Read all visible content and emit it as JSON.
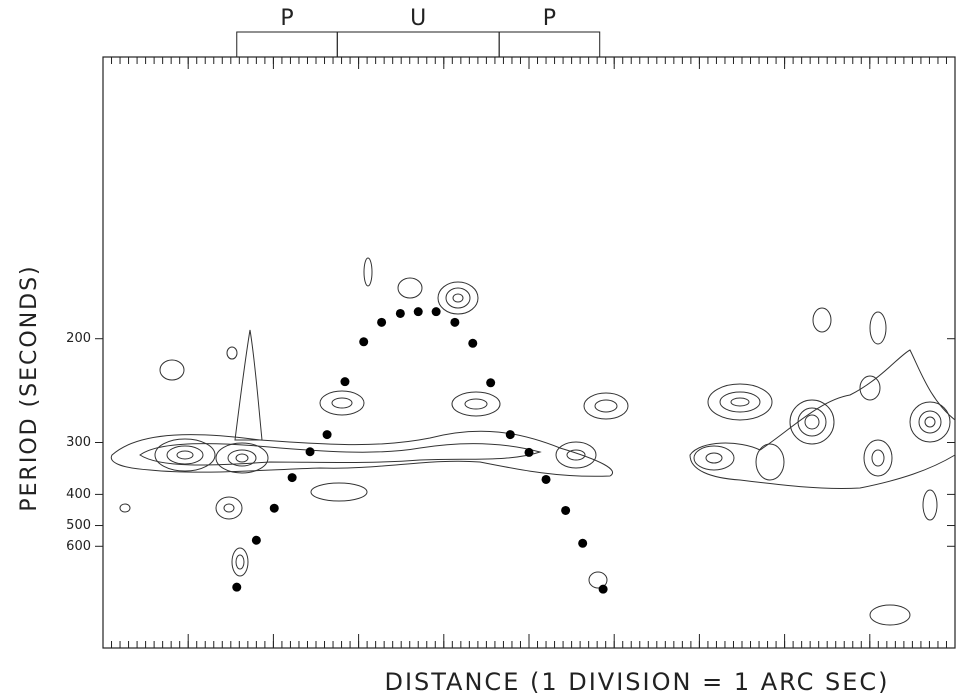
{
  "chart_data": {
    "type": "scatter",
    "xlabel": "DISTANCE (1 DIVISION = 1 ARC SEC)",
    "ylabel": "PERIOD (SECONDS)",
    "regions": [
      {
        "label": "P",
        "start": 15.7,
        "end": 27.5
      },
      {
        "label": "U",
        "start": 27.5,
        "end": 46.5
      },
      {
        "label": "P",
        "start": 46.5,
        "end": 58.3
      }
    ],
    "xlim": [
      0,
      100
    ],
    "xticks": [
      0,
      10,
      20,
      30,
      40,
      50,
      60,
      70,
      80,
      90,
      100
    ],
    "ylim": [
      105,
      30000
    ],
    "y_scale": "reciprocal",
    "yticks": [
      200,
      300,
      400,
      500,
      600
    ],
    "color": "#000000",
    "x": [
      15.7,
      18.0,
      20.1,
      22.2,
      24.3,
      26.3,
      28.4,
      30.6,
      32.7,
      34.9,
      37.0,
      39.1,
      41.3,
      43.4,
      45.5,
      47.8,
      50.0,
      52.0,
      54.3,
      56.3,
      58.7
    ],
    "values": [
      990,
      567,
      439,
      361,
      314,
      289,
      232,
      202,
      190,
      185,
      184,
      184,
      190,
      203,
      233,
      289,
      315,
      365,
      446,
      583,
      1022
    ]
  }
}
